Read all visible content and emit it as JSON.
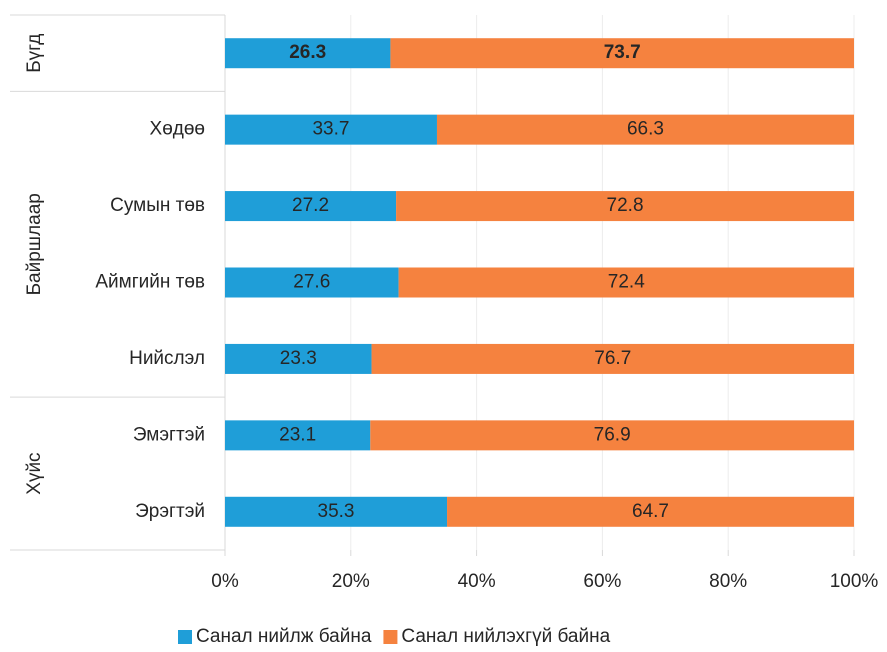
{
  "chart_data": {
    "type": "stacked_bar_horizontal",
    "groups": [
      "Бүгд",
      "Байршлаар",
      "Хүйс"
    ],
    "categories": [
      null,
      "Хөдөө",
      "Сумын төв",
      "Аймгийн төв",
      "Нийслэл",
      "Эмэгтэй",
      "Эрэгтэй"
    ],
    "series": [
      {
        "name": "Санал нийлж байна",
        "color": "#1f9ed8",
        "values": [
          26.3,
          33.7,
          27.2,
          27.6,
          23.3,
          23.1,
          35.3
        ]
      },
      {
        "name": "Санал нийлэхгүй байна",
        "color": "#f5823f",
        "values": [
          73.7,
          66.3,
          72.8,
          72.4,
          76.7,
          76.9,
          64.7
        ]
      }
    ],
    "xlim": [
      0,
      100
    ],
    "xticks": [
      {
        "value": 0,
        "label": "0%"
      },
      {
        "value": 20,
        "label": "20%"
      },
      {
        "value": 40,
        "label": "40%"
      },
      {
        "value": 60,
        "label": "60%"
      },
      {
        "value": 80,
        "label": "80%"
      },
      {
        "value": 100,
        "label": "100%"
      }
    ],
    "legend": "bottom"
  }
}
